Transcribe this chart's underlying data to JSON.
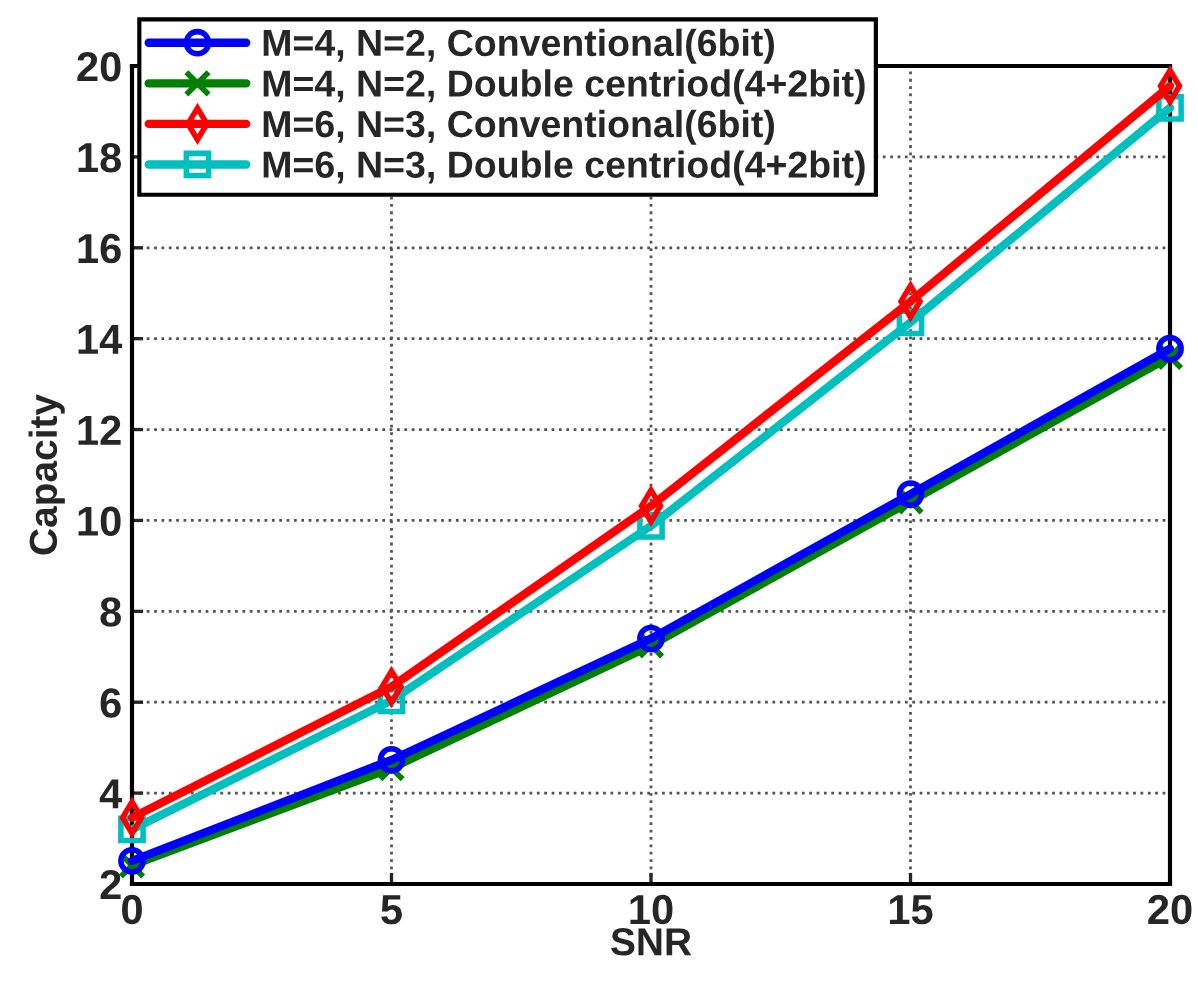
{
  "chart_data": {
    "type": "line",
    "xlabel": "SNR",
    "ylabel": "Capacity",
    "x": [
      0,
      5,
      10,
      15,
      20
    ],
    "series": [
      {
        "name": "M=4, N=2, Conventional(6bit)",
        "color": "#0000ff",
        "marker": "circle",
        "values": [
          2.51,
          4.73,
          7.4,
          10.58,
          13.78
        ]
      },
      {
        "name": "M=4, N=2, Double centriod(4+2bit)",
        "color": "#008000",
        "marker": "cross",
        "values": [
          2.41,
          4.55,
          7.25,
          10.42,
          13.6
        ]
      },
      {
        "name": "M=6, N=3, Conventional(6bit)",
        "color": "#ff0000",
        "marker": "diamond",
        "values": [
          3.46,
          6.34,
          10.32,
          14.82,
          19.56
        ]
      },
      {
        "name": "M=6, N=3, Double centriod(4+2bit)",
        "color": "#00bfbf",
        "marker": "square",
        "values": [
          3.2,
          6.04,
          9.88,
          14.36,
          19.08
        ]
      }
    ],
    "xlim": [
      0,
      20
    ],
    "xticks": [
      0,
      5,
      10,
      15,
      20
    ],
    "ylim": [
      2,
      20
    ],
    "yticks": [
      2,
      4,
      6,
      8,
      10,
      12,
      14,
      16,
      18,
      20
    ],
    "grid": true,
    "legend": "top left",
    "line_style": "solid"
  }
}
